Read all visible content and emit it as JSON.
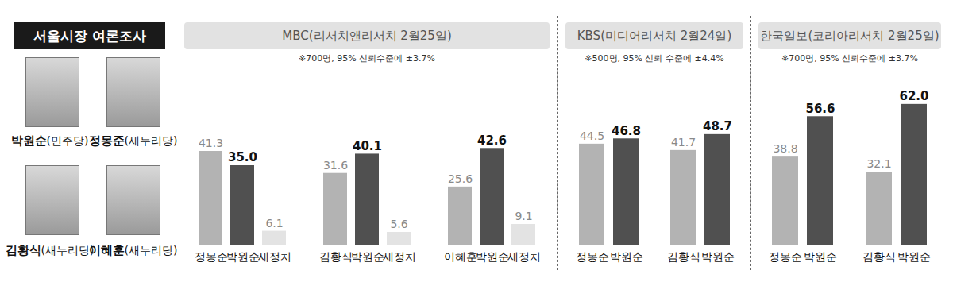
{
  "title": "서울시장 여론조사",
  "candidates": [
    {
      "name": "박원순",
      "party": "(민주당)"
    },
    {
      "name": "정몽준",
      "party": "(새누리당)"
    },
    {
      "name": "김황식",
      "party": "(새누리당)"
    },
    {
      "name": "이혜훈",
      "party": "(새누리당)"
    }
  ],
  "chart_data": [
    {
      "type": "bar",
      "title": "MBC(리서치앤리서치 2월25일)",
      "subtitle": "※700명, 95% 신뢰수준에 ±3.7%",
      "ylim": [
        0,
        70
      ],
      "data_labels": true,
      "tick_labels": "x",
      "groups": [
        {
          "categories": [
            "정몽준",
            "박원순",
            "새정치"
          ],
          "values": [
            41.3,
            35.0,
            6.1
          ],
          "value_labels": [
            "41.3",
            "35.0",
            "6.1"
          ],
          "colors": [
            "#b3b3b3",
            "#505050",
            "#e3e3e3"
          ]
        },
        {
          "categories": [
            "김황식",
            "박원순",
            "새정치"
          ],
          "values": [
            31.6,
            40.1,
            5.6
          ],
          "value_labels": [
            "31.6",
            "40.1",
            "5.6"
          ],
          "colors": [
            "#b3b3b3",
            "#505050",
            "#e3e3e3"
          ]
        },
        {
          "categories": [
            "이혜훈",
            "박원순",
            "새정치"
          ],
          "values": [
            25.6,
            42.6,
            9.1
          ],
          "value_labels": [
            "25.6",
            "42.6",
            "9.1"
          ],
          "colors": [
            "#b3b3b3",
            "#505050",
            "#e3e3e3"
          ]
        }
      ]
    },
    {
      "type": "bar",
      "title": "KBS(미디어리서치 2월24일)",
      "subtitle": "※500명, 95% 신뢰 수준에 ±4.4%",
      "ylim": [
        0,
        70
      ],
      "data_labels": true,
      "tick_labels": "x",
      "groups": [
        {
          "categories": [
            "정몽준",
            "박원순"
          ],
          "values": [
            44.5,
            46.8
          ],
          "value_labels": [
            "44.5",
            "46.8"
          ],
          "colors": [
            "#b3b3b3",
            "#505050"
          ]
        },
        {
          "categories": [
            "김황식",
            "박원순"
          ],
          "values": [
            41.7,
            48.7
          ],
          "value_labels": [
            "41.7",
            "48.7"
          ],
          "colors": [
            "#b3b3b3",
            "#505050"
          ]
        }
      ]
    },
    {
      "type": "bar",
      "title": "한국일보(코리아리서치 2월25일)",
      "subtitle": "※700명, 95% 신뢰수준에 ±3.7%",
      "ylim": [
        0,
        70
      ],
      "data_labels": true,
      "tick_labels": "x",
      "groups": [
        {
          "categories": [
            "정몽준",
            "박원순"
          ],
          "values": [
            38.8,
            56.6
          ],
          "value_labels": [
            "38.8",
            "56.6"
          ],
          "colors": [
            "#b3b3b3",
            "#505050"
          ]
        },
        {
          "categories": [
            "김황식",
            "박원순"
          ],
          "values": [
            32.1,
            62.0
          ],
          "value_labels": [
            "32.1",
            "62.0"
          ],
          "colors": [
            "#b3b3b3",
            "#505050"
          ]
        }
      ]
    }
  ]
}
